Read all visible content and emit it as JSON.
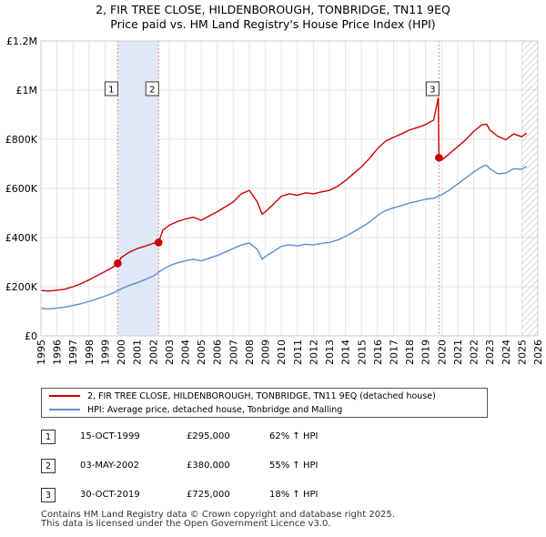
{
  "title_line1": "2, FIR TREE CLOSE, HILDENBOROUGH, TONBRIDGE, TN11 9EQ",
  "title_line2": "Price paid vs. HM Land Registry's House Price Index (HPI)",
  "legend": {
    "property_label": "2, FIR TREE CLOSE, HILDENBOROUGH, TONBRIDGE, TN11 9EQ (detached house)",
    "hpi_label": "HPI: Average price, detached house, Tonbridge and Malling"
  },
  "sales": [
    {
      "num": "1",
      "date": "15-OCT-1999",
      "price": "£295,000",
      "hpi": "62% ↑ HPI"
    },
    {
      "num": "2",
      "date": "03-MAY-2002",
      "price": "£380,000",
      "hpi": "55% ↑ HPI"
    },
    {
      "num": "3",
      "date": "30-OCT-2019",
      "price": "£725,000",
      "hpi": "18% ↑ HPI"
    }
  ],
  "footer": {
    "line1": "Contains HM Land Registry data © Crown copyright and database right 2025.",
    "line2": "This data is licensed under the Open Government Licence v3.0."
  },
  "colors": {
    "property": "#cc0000",
    "hpi": "#5b8fd0",
    "grid": "#e6e6e6",
    "shade": "#dfe8f8",
    "hatch": "#bbbbbb",
    "vline": "#dd6666"
  },
  "chart_data": {
    "type": "line",
    "title": "Price paid vs. HM Land Registry's House Price Index (HPI)",
    "xlim": [
      1995,
      2026
    ],
    "ylim": [
      0,
      1200000
    ],
    "x_ticks": [
      "1995",
      "1996",
      "1997",
      "1998",
      "1999",
      "2000",
      "2001",
      "2002",
      "2003",
      "2004",
      "2005",
      "2006",
      "2007",
      "2008",
      "2009",
      "2010",
      "2011",
      "2012",
      "2013",
      "2014",
      "2015",
      "2016",
      "2017",
      "2018",
      "2019",
      "2020",
      "2021",
      "2022",
      "2023",
      "2024",
      "2025",
      "2026"
    ],
    "y_ticks": [
      {
        "value": 0,
        "label": "£0"
      },
      {
        "value": 200000,
        "label": "£200K"
      },
      {
        "value": 400000,
        "label": "£400K"
      },
      {
        "value": 600000,
        "label": "£600K"
      },
      {
        "value": 800000,
        "label": "£800K"
      },
      {
        "value": 1000000,
        "label": "£1M"
      },
      {
        "value": 1200000,
        "label": "£1.2M"
      }
    ],
    "shaded_ranges": [
      [
        1999.79,
        2002.34
      ]
    ],
    "hatched_from": 2025.0,
    "sale_markers": [
      {
        "label": "1",
        "x": 1999.79,
        "y": 295000
      },
      {
        "label": "2",
        "x": 2002.34,
        "y": 380000
      },
      {
        "label": "3",
        "x": 2019.83,
        "y": 725000
      }
    ],
    "series": [
      {
        "name": "2, FIR TREE CLOSE, HILDENBOROUGH, TONBRIDGE, TN11 9EQ (detached house)",
        "color": "#cc0000",
        "points": [
          [
            1995.0,
            185000
          ],
          [
            1995.5,
            182000
          ],
          [
            1996.0,
            186000
          ],
          [
            1996.5,
            190000
          ],
          [
            1997.0,
            200000
          ],
          [
            1997.5,
            212000
          ],
          [
            1998.0,
            228000
          ],
          [
            1998.5,
            245000
          ],
          [
            1999.0,
            262000
          ],
          [
            1999.5,
            280000
          ],
          [
            1999.79,
            295000
          ],
          [
            2000.0,
            318000
          ],
          [
            2000.5,
            340000
          ],
          [
            2001.0,
            355000
          ],
          [
            2001.5,
            365000
          ],
          [
            2002.0,
            376000
          ],
          [
            2002.34,
            380000
          ],
          [
            2002.6,
            430000
          ],
          [
            2003.0,
            450000
          ],
          [
            2003.5,
            465000
          ],
          [
            2004.0,
            475000
          ],
          [
            2004.5,
            483000
          ],
          [
            2005.0,
            470000
          ],
          [
            2005.5,
            488000
          ],
          [
            2006.0,
            505000
          ],
          [
            2006.5,
            525000
          ],
          [
            2007.0,
            545000
          ],
          [
            2007.5,
            578000
          ],
          [
            2008.0,
            592000
          ],
          [
            2008.5,
            545000
          ],
          [
            2008.8,
            495000
          ],
          [
            2009.0,
            505000
          ],
          [
            2009.5,
            535000
          ],
          [
            2010.0,
            568000
          ],
          [
            2010.5,
            578000
          ],
          [
            2011.0,
            572000
          ],
          [
            2011.5,
            582000
          ],
          [
            2012.0,
            578000
          ],
          [
            2012.5,
            586000
          ],
          [
            2013.0,
            592000
          ],
          [
            2013.5,
            608000
          ],
          [
            2014.0,
            632000
          ],
          [
            2014.5,
            660000
          ],
          [
            2015.0,
            688000
          ],
          [
            2015.5,
            722000
          ],
          [
            2016.0,
            762000
          ],
          [
            2016.5,
            792000
          ],
          [
            2017.0,
            808000
          ],
          [
            2017.5,
            822000
          ],
          [
            2018.0,
            838000
          ],
          [
            2018.5,
            848000
          ],
          [
            2019.0,
            860000
          ],
          [
            2019.5,
            878000
          ],
          [
            2019.79,
            968000
          ],
          [
            2019.83,
            725000
          ],
          [
            2020.0,
            715000
          ],
          [
            2020.5,
            742000
          ],
          [
            2021.0,
            770000
          ],
          [
            2021.5,
            798000
          ],
          [
            2022.0,
            832000
          ],
          [
            2022.5,
            858000
          ],
          [
            2022.8,
            862000
          ],
          [
            2023.0,
            838000
          ],
          [
            2023.5,
            812000
          ],
          [
            2024.0,
            798000
          ],
          [
            2024.5,
            822000
          ],
          [
            2025.0,
            810000
          ],
          [
            2025.3,
            825000
          ]
        ]
      },
      {
        "name": "HPI: Average price, detached house, Tonbridge and Malling",
        "color": "#5b8fd0",
        "points": [
          [
            1995.0,
            112000
          ],
          [
            1995.5,
            110000
          ],
          [
            1996.0,
            113000
          ],
          [
            1996.5,
            117000
          ],
          [
            1997.0,
            124000
          ],
          [
            1997.5,
            131000
          ],
          [
            1998.0,
            140000
          ],
          [
            1998.5,
            151000
          ],
          [
            1999.0,
            162000
          ],
          [
            1999.5,
            174000
          ],
          [
            2000.0,
            191000
          ],
          [
            2000.5,
            205000
          ],
          [
            2001.0,
            216000
          ],
          [
            2001.5,
            229000
          ],
          [
            2002.0,
            243000
          ],
          [
            2002.5,
            266000
          ],
          [
            2003.0,
            285000
          ],
          [
            2003.5,
            297000
          ],
          [
            2004.0,
            305000
          ],
          [
            2004.5,
            312000
          ],
          [
            2005.0,
            305000
          ],
          [
            2005.5,
            316000
          ],
          [
            2006.0,
            327000
          ],
          [
            2006.5,
            341000
          ],
          [
            2007.0,
            355000
          ],
          [
            2007.5,
            370000
          ],
          [
            2008.0,
            378000
          ],
          [
            2008.5,
            352000
          ],
          [
            2008.8,
            312000
          ],
          [
            2009.0,
            323000
          ],
          [
            2009.5,
            343000
          ],
          [
            2010.0,
            364000
          ],
          [
            2010.5,
            371000
          ],
          [
            2011.0,
            366000
          ],
          [
            2011.5,
            373000
          ],
          [
            2012.0,
            370000
          ],
          [
            2012.5,
            376000
          ],
          [
            2013.0,
            380000
          ],
          [
            2013.5,
            390000
          ],
          [
            2014.0,
            405000
          ],
          [
            2014.5,
            423000
          ],
          [
            2015.0,
            442000
          ],
          [
            2015.5,
            463000
          ],
          [
            2016.0,
            490000
          ],
          [
            2016.5,
            510000
          ],
          [
            2017.0,
            521000
          ],
          [
            2017.5,
            530000
          ],
          [
            2018.0,
            541000
          ],
          [
            2018.5,
            548000
          ],
          [
            2019.0,
            556000
          ],
          [
            2019.5,
            560000
          ],
          [
            2020.0,
            574000
          ],
          [
            2020.5,
            594000
          ],
          [
            2021.0,
            618000
          ],
          [
            2021.5,
            642000
          ],
          [
            2022.0,
            667000
          ],
          [
            2022.5,
            688000
          ],
          [
            2022.8,
            695000
          ],
          [
            2023.0,
            680000
          ],
          [
            2023.5,
            660000
          ],
          [
            2024.0,
            662000
          ],
          [
            2024.5,
            680000
          ],
          [
            2025.0,
            678000
          ],
          [
            2025.3,
            690000
          ]
        ]
      }
    ]
  }
}
